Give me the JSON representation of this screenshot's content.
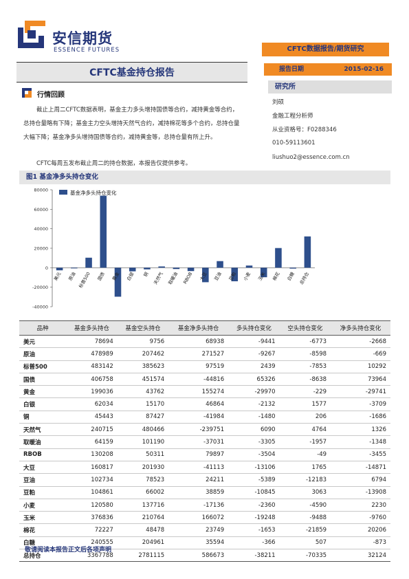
{
  "header": {
    "brand_cn": "安信期货",
    "brand_en": "ESSENCE FUTURES",
    "category": "CFTC数据报告/期货研究",
    "report_title": "CFTC基金持仓报告",
    "date_label": "报告日期",
    "date_value": "2015-02-16"
  },
  "sidebar": {
    "research_label": "研究所",
    "analyst": "刘硕",
    "role": "金融工程分析师",
    "cert": "从业资格号：F0288346",
    "phone": "010-59113601",
    "email": "liushuo2@essence.com.cn"
  },
  "section": {
    "title": "行情回顾",
    "para1": "截止上周二CFTC数据表明，基金主力多头增持国债等合约，减持黄金等合约，总持仓量略有下降；基金主力空头增持天然气合约，减持棉花等多个合约，总持仓量大幅下降；基金净多头增持国债等合约，减持黄金等，总持仓量有所上升。",
    "para2": "CFTC每周五发布截止周二的持仓数据，本报告仅提供参考。"
  },
  "figure": {
    "title": "图1 基金净多头持仓变化"
  },
  "colors": {
    "accent": "#f08a24",
    "brand": "#25367a",
    "bar": "#2e4f8c"
  },
  "chart_data": {
    "type": "bar",
    "legend": "基金净多头持仓变化",
    "legend_position": "top-left",
    "categories": [
      "美元",
      "原油",
      "标普500",
      "国债",
      "黄金",
      "白银",
      "铜",
      "天然气",
      "取暖油",
      "RBOB",
      "大豆",
      "豆油",
      "豆粕",
      "小麦",
      "玉米",
      "棉花",
      "白糖",
      "总持仓"
    ],
    "values": [
      -2668,
      -669,
      10292,
      73964,
      -29741,
      -3709,
      -1686,
      1326,
      -1348,
      -3455,
      -14871,
      6794,
      -13908,
      2230,
      -9760,
      20206,
      -873,
      32124
    ],
    "ylim": [
      -40000,
      80000
    ],
    "yticks": [
      "80000",
      "60000",
      "40000",
      "20000",
      "0",
      "-20000",
      "-40000"
    ],
    "grid": false
  },
  "table": {
    "headers": [
      "品种",
      "基金多头持仓",
      "基金空头持仓",
      "基金净多头持仓",
      "多头持仓变化",
      "空头持仓变化",
      "净多头持仓变化"
    ],
    "rows": [
      [
        "美元",
        "78694",
        "9756",
        "68938",
        "-9441",
        "-6773",
        "-2668"
      ],
      [
        "原油",
        "478989",
        "207462",
        "271527",
        "-9267",
        "-8598",
        "-669"
      ],
      [
        "标普500",
        "483142",
        "385623",
        "97519",
        "2439",
        "-7853",
        "10292"
      ],
      [
        "国债",
        "406758",
        "451574",
        "-44816",
        "65326",
        "-8638",
        "73964"
      ],
      [
        "黄金",
        "199036",
        "43762",
        "155274",
        "-29970",
        "-229",
        "-29741"
      ],
      [
        "白银",
        "62034",
        "15170",
        "46864",
        "-2132",
        "1577",
        "-3709"
      ],
      [
        "铜",
        "45443",
        "87427",
        "-41984",
        "-1480",
        "206",
        "-1686"
      ],
      [
        "天然气",
        "240715",
        "480466",
        "-239751",
        "6090",
        "4764",
        "1326"
      ],
      [
        "取暖油",
        "64159",
        "101190",
        "-37031",
        "-3305",
        "-1957",
        "-1348"
      ],
      [
        "RBOB",
        "130208",
        "50311",
        "79897",
        "-3504",
        "-49",
        "-3455"
      ],
      [
        "大豆",
        "160817",
        "201930",
        "-41113",
        "-13106",
        "1765",
        "-14871"
      ],
      [
        "豆油",
        "102734",
        "78523",
        "24211",
        "-5389",
        "-12183",
        "6794"
      ],
      [
        "豆粕",
        "104861",
        "66002",
        "38859",
        "-10845",
        "3063",
        "-13908"
      ],
      [
        "小麦",
        "120580",
        "137716",
        "-17136",
        "-2360",
        "-4590",
        "2230"
      ],
      [
        "玉米",
        "376836",
        "210764",
        "166072",
        "-19248",
        "-9488",
        "-9760"
      ],
      [
        "棉花",
        "72227",
        "48478",
        "23749",
        "-1653",
        "-21859",
        "20206"
      ],
      [
        "白糖",
        "240555",
        "204961",
        "35594",
        "-366",
        "507",
        "-873"
      ],
      [
        "总持仓",
        "3367788",
        "2781115",
        "586673",
        "-38211",
        "-70335",
        "32124"
      ]
    ]
  },
  "footer": {
    "disclaimer": "敬请阅读本报告正文后各项声明"
  }
}
